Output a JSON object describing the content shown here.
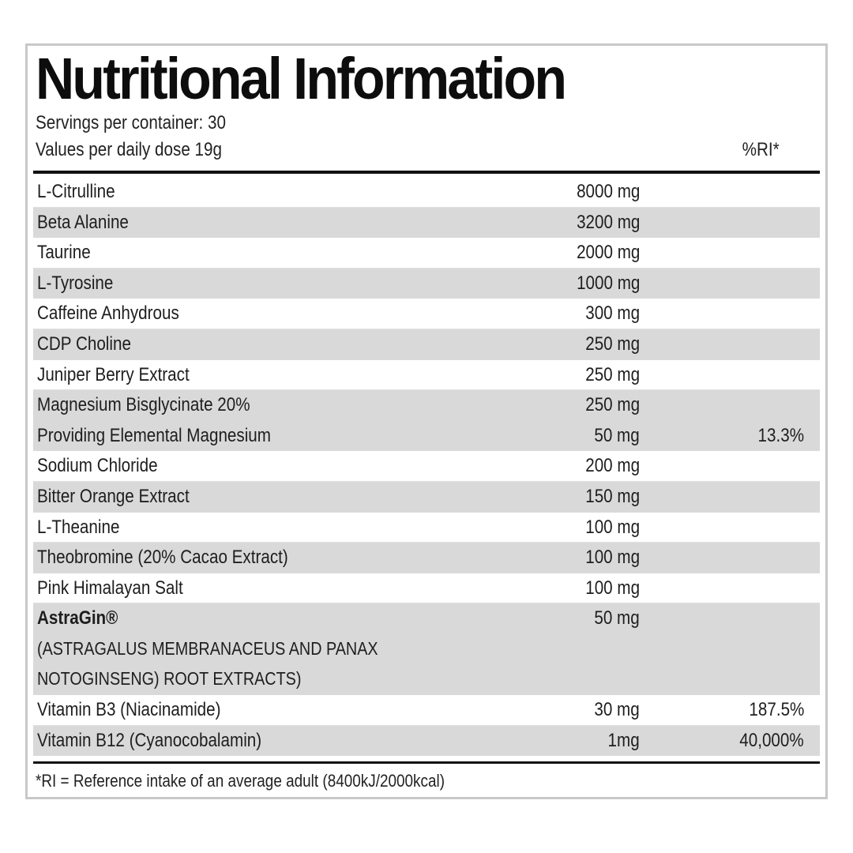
{
  "header": {
    "title": "Nutritional Information",
    "servings": "Servings per container: 30",
    "dose": "Values per daily dose 19g",
    "ri_label": "%RI*"
  },
  "rows": [
    {
      "name": "L-Citrulline",
      "amount": "8000 mg",
      "ri": ""
    },
    {
      "name": "Beta Alanine",
      "amount": "3200 mg",
      "ri": ""
    },
    {
      "name": "Taurine",
      "amount": "2000 mg",
      "ri": ""
    },
    {
      "name": "L-Tyrosine",
      "amount": "1000 mg",
      "ri": ""
    },
    {
      "name": "Caffeine Anhydrous",
      "amount": "300 mg",
      "ri": ""
    },
    {
      "name": "CDP Choline",
      "amount": "250 mg",
      "ri": ""
    },
    {
      "name": "Juniper Berry Extract",
      "amount": "250 mg",
      "ri": ""
    },
    {
      "name": "Magnesium Bisglycinate 20%",
      "amount": "250 mg",
      "ri": ""
    },
    {
      "name": "Providing Elemental Magnesium",
      "amount": "50 mg",
      "ri": "13.3%"
    },
    {
      "name": "Sodium Chloride",
      "amount": "200 mg",
      "ri": ""
    },
    {
      "name": "Bitter Orange Extract",
      "amount": "150 mg",
      "ri": ""
    },
    {
      "name": "L-Theanine",
      "amount": "100 mg",
      "ri": ""
    },
    {
      "name": "Theobromine (20% Cacao Extract)",
      "amount": "100 mg",
      "ri": ""
    },
    {
      "name": "Pink Himalayan Salt",
      "amount": "100 mg",
      "ri": ""
    },
    {
      "name": "AstraGin®",
      "amount": "50 mg",
      "ri": "",
      "sub1": "(ASTRAGALUS MEMBRANACEUS AND PANAX",
      "sub2": "NOTOGINSENG) ROOT EXTRACTS)"
    },
    {
      "name": "Vitamin B3 (Niacinamide)",
      "amount": "30 mg",
      "ri": "187.5%"
    },
    {
      "name": "Vitamin B12 (Cyanocobalamin)",
      "amount": "1mg",
      "ri": "40,000%"
    }
  ],
  "footnote": "*RI = Reference intake of an average adult (8400kJ/2000kcal)"
}
